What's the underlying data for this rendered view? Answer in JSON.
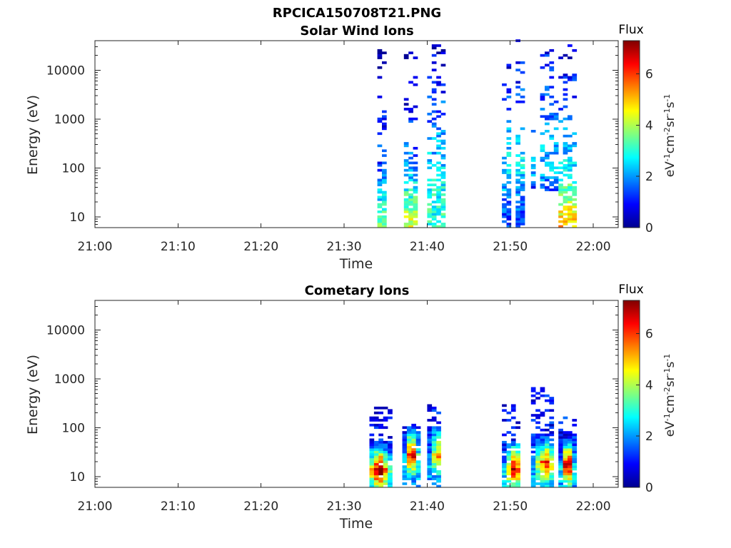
{
  "figure": {
    "title": "RPCICA150708T21.PNG"
  },
  "chart_data": [
    {
      "type": "heatmap",
      "title": "Solar Wind Ions",
      "xlabel": "Time",
      "ylabel": "Energy (eV)",
      "x_ticks": [
        "21:00",
        "21:10",
        "21:20",
        "21:30",
        "21:40",
        "21:50",
        "22:00"
      ],
      "x_range_minutes": [
        0,
        63
      ],
      "y_scale": "log",
      "y_ticks": [
        "10",
        "100",
        "1000",
        "10000"
      ],
      "y_range": [
        6,
        40000
      ],
      "colorbar": {
        "title": "Flux",
        "units": "eV-1cm-2sr-1s-1",
        "range": [
          0,
          7.3
        ],
        "ticks": [
          "0",
          "2",
          "4",
          "6"
        ],
        "colormap": "jet"
      },
      "bursts": [
        {
          "start_min": 34.0,
          "end_min": 35.2,
          "flux_at_10eV": 3.2,
          "flux_at_100eV": 1.4,
          "flux_at_10keV": 0.3
        },
        {
          "start_min": 37.2,
          "end_min": 38.5,
          "flux_at_10eV": 4.0,
          "flux_at_100eV": 1.8,
          "flux_at_10keV": 0.3
        },
        {
          "start_min": 40.0,
          "end_min": 42.0,
          "flux_at_10eV": 3.0,
          "flux_at_100eV": 2.5,
          "flux_at_10keV": 0.8
        },
        {
          "start_min": 49.0,
          "end_min": 51.5,
          "flux_at_10eV": 1.5,
          "flux_at_100eV": 2.6,
          "flux_at_10keV": 1.0
        },
        {
          "start_min": 52.5,
          "end_min": 55.5,
          "flux_at_10eV": 0,
          "flux_at_100eV": 2.4,
          "flux_at_10keV": 1.2
        },
        {
          "start_min": 55.8,
          "end_min": 57.5,
          "flux_at_10eV": 4.6,
          "flux_at_100eV": 2.5,
          "flux_at_10keV": 1.0
        }
      ]
    },
    {
      "type": "heatmap",
      "title": "Cometary Ions",
      "xlabel": "Time",
      "ylabel": "Energy (eV)",
      "x_ticks": [
        "21:00",
        "21:10",
        "21:20",
        "21:30",
        "21:40",
        "21:50",
        "22:00"
      ],
      "x_range_minutes": [
        0,
        63
      ],
      "y_scale": "log",
      "y_ticks": [
        "10",
        "100",
        "1000",
        "10000"
      ],
      "y_range": [
        6,
        40000
      ],
      "colorbar": {
        "title": "Flux",
        "units": "eV-1cm-2sr-1s-1",
        "range": [
          0,
          7.3
        ],
        "ticks": [
          "0",
          "2",
          "4",
          "6"
        ],
        "colormap": "jet"
      },
      "bursts": [
        {
          "start_min": 32.5,
          "end_min": 35.5,
          "peak_flux": 7.0,
          "peak_energy_eV": 14,
          "max_energy_eV": 250
        },
        {
          "start_min": 37.0,
          "end_min": 38.8,
          "peak_flux": 6.5,
          "peak_energy_eV": 30,
          "max_energy_eV": 120
        },
        {
          "start_min": 40.0,
          "end_min": 42.0,
          "peak_flux": 4.5,
          "peak_energy_eV": 30,
          "max_energy_eV": 270
        },
        {
          "start_min": 49.0,
          "end_min": 51.5,
          "peak_flux": 6.2,
          "peak_energy_eV": 15,
          "max_energy_eV": 300
        },
        {
          "start_min": 52.5,
          "end_min": 55.5,
          "peak_flux": 5.0,
          "peak_energy_eV": 20,
          "max_energy_eV": 600
        },
        {
          "start_min": 55.8,
          "end_min": 57.5,
          "peak_flux": 7.2,
          "peak_energy_eV": 18,
          "max_energy_eV": 160
        }
      ]
    }
  ]
}
